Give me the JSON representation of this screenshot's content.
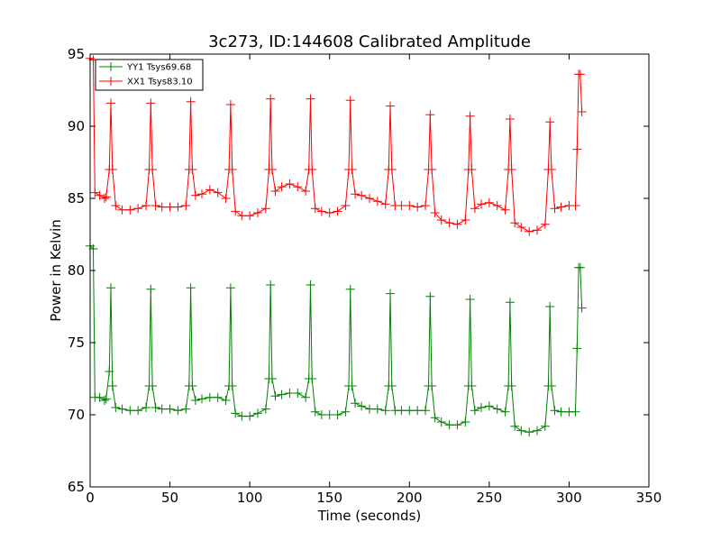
{
  "chart_data": {
    "type": "line",
    "title": "3c273, ID:144608 Calibrated Amplitude",
    "xlabel": "Time (seconds)",
    "ylabel": "Power in Kelvin",
    "xlim": [
      0,
      350
    ],
    "ylim": [
      65,
      95
    ],
    "xticks": [
      0,
      50,
      100,
      150,
      200,
      250,
      300,
      350
    ],
    "yticks": [
      65,
      70,
      75,
      80,
      85,
      90,
      95
    ],
    "grid": false,
    "legend_position": "top-left",
    "marker": "+",
    "series": [
      {
        "name": "YY1 Tsys69.68",
        "color": "#008000",
        "points": [
          [
            0,
            81.7
          ],
          [
            2,
            81.5
          ],
          [
            3,
            71.2
          ],
          [
            6,
            71.2
          ],
          [
            9,
            71.0
          ],
          [
            10,
            71.1
          ],
          [
            12,
            73.0
          ],
          [
            13,
            78.8
          ],
          [
            14,
            72.0
          ],
          [
            16,
            70.5
          ],
          [
            20,
            70.4
          ],
          [
            25,
            70.3
          ],
          [
            30,
            70.3
          ],
          [
            35,
            70.5
          ],
          [
            37,
            72.0
          ],
          [
            38,
            78.7
          ],
          [
            39,
            72.0
          ],
          [
            41,
            70.5
          ],
          [
            45,
            70.4
          ],
          [
            50,
            70.4
          ],
          [
            55,
            70.3
          ],
          [
            60,
            70.4
          ],
          [
            62,
            72.0
          ],
          [
            63,
            78.8
          ],
          [
            64,
            72.0
          ],
          [
            66,
            71.0
          ],
          [
            70,
            71.1
          ],
          [
            75,
            71.2
          ],
          [
            80,
            71.2
          ],
          [
            85,
            71.0
          ],
          [
            87,
            72.0
          ],
          [
            88,
            78.8
          ],
          [
            89,
            72.0
          ],
          [
            91,
            70.1
          ],
          [
            95,
            69.9
          ],
          [
            100,
            69.9
          ],
          [
            105,
            70.1
          ],
          [
            110,
            70.4
          ],
          [
            112,
            72.5
          ],
          [
            113,
            79.0
          ],
          [
            114,
            72.5
          ],
          [
            116,
            71.3
          ],
          [
            120,
            71.4
          ],
          [
            125,
            71.5
          ],
          [
            130,
            71.5
          ],
          [
            135,
            71.2
          ],
          [
            137,
            72.5
          ],
          [
            138,
            79.0
          ],
          [
            139,
            72.5
          ],
          [
            141,
            70.2
          ],
          [
            145,
            70.0
          ],
          [
            150,
            70.0
          ],
          [
            155,
            70.0
          ],
          [
            160,
            70.2
          ],
          [
            162,
            72.0
          ],
          [
            163,
            78.7
          ],
          [
            164,
            72.0
          ],
          [
            166,
            70.8
          ],
          [
            170,
            70.6
          ],
          [
            175,
            70.4
          ],
          [
            180,
            70.4
          ],
          [
            185,
            70.3
          ],
          [
            187,
            72.0
          ],
          [
            188,
            78.4
          ],
          [
            189,
            72.0
          ],
          [
            191,
            70.3
          ],
          [
            195,
            70.3
          ],
          [
            200,
            70.3
          ],
          [
            205,
            70.3
          ],
          [
            210,
            70.3
          ],
          [
            212,
            72.0
          ],
          [
            213,
            78.2
          ],
          [
            214,
            72.0
          ],
          [
            216,
            69.8
          ],
          [
            220,
            69.5
          ],
          [
            225,
            69.3
          ],
          [
            230,
            69.3
          ],
          [
            235,
            69.5
          ],
          [
            237,
            72.0
          ],
          [
            238,
            78.0
          ],
          [
            239,
            72.0
          ],
          [
            241,
            70.3
          ],
          [
            245,
            70.5
          ],
          [
            250,
            70.6
          ],
          [
            255,
            70.4
          ],
          [
            260,
            70.2
          ],
          [
            262,
            72.0
          ],
          [
            263,
            77.8
          ],
          [
            264,
            72.0
          ],
          [
            266,
            69.2
          ],
          [
            270,
            68.9
          ],
          [
            275,
            68.8
          ],
          [
            280,
            68.9
          ],
          [
            285,
            69.2
          ],
          [
            287,
            72.0
          ],
          [
            288,
            77.5
          ],
          [
            289,
            72.0
          ],
          [
            291,
            70.3
          ],
          [
            295,
            70.2
          ],
          [
            300,
            70.2
          ],
          [
            304,
            70.2
          ],
          [
            305,
            74.6
          ],
          [
            306,
            80.2
          ],
          [
            307,
            80.2
          ],
          [
            308,
            77.4
          ]
        ]
      },
      {
        "name": "XX1 Tsys83.10",
        "color": "#ff0000",
        "points": [
          [
            0,
            94.7
          ],
          [
            2,
            94.6
          ],
          [
            3,
            85.4
          ],
          [
            6,
            85.2
          ],
          [
            9,
            85.0
          ],
          [
            10,
            85.1
          ],
          [
            12,
            87.0
          ],
          [
            13,
            91.6
          ],
          [
            14,
            87.0
          ],
          [
            16,
            84.5
          ],
          [
            20,
            84.2
          ],
          [
            25,
            84.2
          ],
          [
            30,
            84.3
          ],
          [
            35,
            84.5
          ],
          [
            37,
            87.0
          ],
          [
            38,
            91.6
          ],
          [
            39,
            87.0
          ],
          [
            41,
            84.5
          ],
          [
            45,
            84.4
          ],
          [
            50,
            84.4
          ],
          [
            55,
            84.4
          ],
          [
            60,
            84.5
          ],
          [
            62,
            87.0
          ],
          [
            63,
            91.7
          ],
          [
            64,
            87.0
          ],
          [
            66,
            85.2
          ],
          [
            70,
            85.3
          ],
          [
            75,
            85.6
          ],
          [
            80,
            85.4
          ],
          [
            85,
            85.0
          ],
          [
            87,
            87.0
          ],
          [
            88,
            91.5
          ],
          [
            89,
            87.0
          ],
          [
            91,
            84.1
          ],
          [
            95,
            83.8
          ],
          [
            100,
            83.8
          ],
          [
            105,
            84.0
          ],
          [
            110,
            84.3
          ],
          [
            112,
            87.0
          ],
          [
            113,
            91.9
          ],
          [
            114,
            87.0
          ],
          [
            116,
            85.5
          ],
          [
            120,
            85.8
          ],
          [
            125,
            86.0
          ],
          [
            130,
            85.8
          ],
          [
            135,
            85.5
          ],
          [
            137,
            87.0
          ],
          [
            138,
            91.9
          ],
          [
            139,
            87.0
          ],
          [
            141,
            84.3
          ],
          [
            145,
            84.1
          ],
          [
            150,
            84.0
          ],
          [
            155,
            84.1
          ],
          [
            160,
            84.5
          ],
          [
            162,
            87.0
          ],
          [
            163,
            91.8
          ],
          [
            164,
            87.0
          ],
          [
            166,
            85.3
          ],
          [
            170,
            85.2
          ],
          [
            175,
            85.0
          ],
          [
            180,
            84.8
          ],
          [
            185,
            84.6
          ],
          [
            187,
            87.0
          ],
          [
            188,
            91.4
          ],
          [
            189,
            87.0
          ],
          [
            191,
            84.5
          ],
          [
            195,
            84.5
          ],
          [
            200,
            84.5
          ],
          [
            205,
            84.4
          ],
          [
            210,
            84.5
          ],
          [
            212,
            87.0
          ],
          [
            213,
            90.8
          ],
          [
            214,
            87.0
          ],
          [
            216,
            84.0
          ],
          [
            220,
            83.5
          ],
          [
            225,
            83.3
          ],
          [
            230,
            83.2
          ],
          [
            235,
            83.5
          ],
          [
            237,
            87.0
          ],
          [
            238,
            90.7
          ],
          [
            239,
            87.0
          ],
          [
            241,
            84.3
          ],
          [
            245,
            84.6
          ],
          [
            250,
            84.7
          ],
          [
            255,
            84.5
          ],
          [
            260,
            84.2
          ],
          [
            262,
            87.0
          ],
          [
            263,
            90.5
          ],
          [
            264,
            87.0
          ],
          [
            266,
            83.3
          ],
          [
            270,
            83.0
          ],
          [
            275,
            82.7
          ],
          [
            280,
            82.8
          ],
          [
            285,
            83.2
          ],
          [
            287,
            87.0
          ],
          [
            288,
            90.3
          ],
          [
            289,
            87.0
          ],
          [
            291,
            84.3
          ],
          [
            295,
            84.4
          ],
          [
            300,
            84.5
          ],
          [
            304,
            84.5
          ],
          [
            305,
            88.4
          ],
          [
            306,
            93.6
          ],
          [
            307,
            93.6
          ],
          [
            308,
            91.0
          ]
        ]
      }
    ]
  }
}
